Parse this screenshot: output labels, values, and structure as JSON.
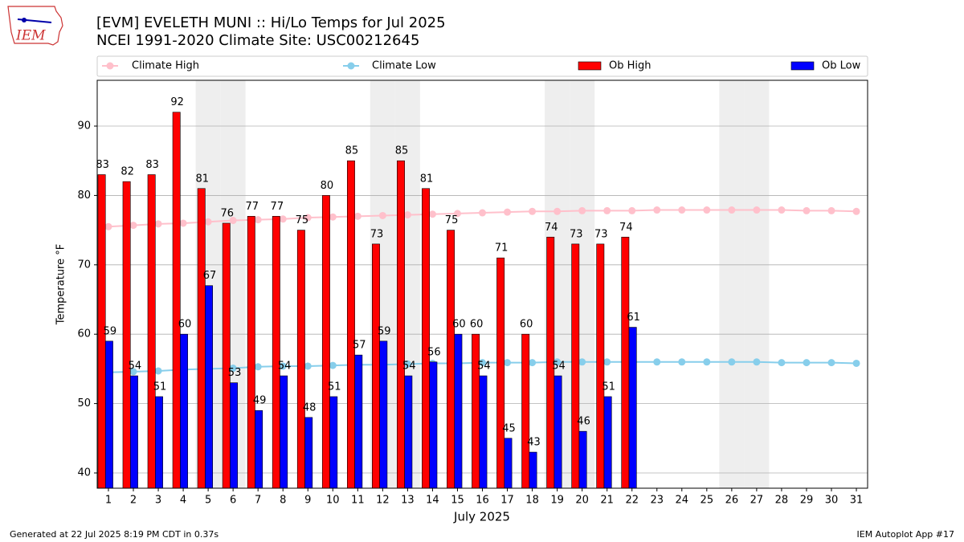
{
  "chart_data": {
    "type": "bar",
    "title": "[EVM] EVELETH MUNI :: Hi/Lo Temps for Jul 2025",
    "subtitle": "NCEI 1991-2020 Climate Site: USC00212645",
    "logo_text": "IEM",
    "x_label": "July 2025",
    "y_label": "Temperature °F",
    "footer_left": "Generated at 22 Jul 2025 8:19 PM CDT in 0.37s",
    "footer_right": "IEM Autoplot App #17",
    "x": [
      1,
      2,
      3,
      4,
      5,
      6,
      7,
      8,
      9,
      10,
      11,
      12,
      13,
      14,
      15,
      16,
      17,
      18,
      19,
      20,
      21,
      22,
      23,
      24,
      25,
      26,
      27,
      28,
      29,
      30,
      31
    ],
    "xlim": [
      0.55,
      31.45
    ],
    "xticks": [
      1,
      2,
      3,
      4,
      5,
      6,
      7,
      8,
      9,
      10,
      11,
      12,
      13,
      14,
      15,
      16,
      17,
      18,
      19,
      20,
      21,
      22,
      23,
      24,
      25,
      26,
      27,
      28,
      29,
      30,
      31
    ],
    "ylim": [
      37.8,
      96.6
    ],
    "yticks": [
      40,
      50,
      60,
      70,
      80,
      90
    ],
    "grid": true,
    "shaded_days": [
      5,
      6,
      12,
      13,
      19,
      20,
      26,
      27
    ],
    "shade_color": "#eeeeee",
    "series": [
      {
        "name": "Climate High",
        "type": "line",
        "color": "#ffc0cb",
        "values": [
          75.5,
          75.7,
          75.9,
          76.0,
          76.2,
          76.4,
          76.5,
          76.6,
          76.8,
          76.9,
          77.0,
          77.1,
          77.2,
          77.3,
          77.4,
          77.5,
          77.6,
          77.7,
          77.7,
          77.8,
          77.8,
          77.8,
          77.9,
          77.9,
          77.9,
          77.9,
          77.9,
          77.9,
          77.8,
          77.8,
          77.7
        ]
      },
      {
        "name": "Climate Low",
        "type": "line",
        "color": "#87ceeb",
        "values": [
          54.5,
          54.6,
          54.7,
          54.9,
          55.0,
          55.1,
          55.3,
          55.4,
          55.4,
          55.5,
          55.6,
          55.6,
          55.7,
          55.8,
          55.8,
          55.9,
          55.9,
          55.9,
          56.0,
          56.0,
          56.0,
          56.0,
          56.0,
          56.0,
          56.0,
          56.0,
          56.0,
          55.9,
          55.9,
          55.9,
          55.8
        ]
      },
      {
        "name": "Ob High",
        "type": "bar",
        "color": "#ff0000",
        "values": [
          83,
          82,
          83,
          92,
          81,
          76,
          77,
          77,
          75,
          80,
          85,
          73,
          85,
          81,
          75,
          60,
          71,
          60,
          74,
          73,
          73,
          74,
          null,
          null,
          null,
          null,
          null,
          null,
          null,
          null,
          null
        ]
      },
      {
        "name": "Ob Low",
        "type": "bar",
        "color": "#0000ff",
        "values": [
          59,
          54,
          51,
          60,
          67,
          53,
          49,
          54,
          48,
          51,
          57,
          59,
          54,
          56,
          60,
          54,
          45,
          43,
          54,
          46,
          51,
          61,
          null,
          null,
          null,
          null,
          null,
          null,
          null,
          null,
          null
        ]
      }
    ]
  }
}
